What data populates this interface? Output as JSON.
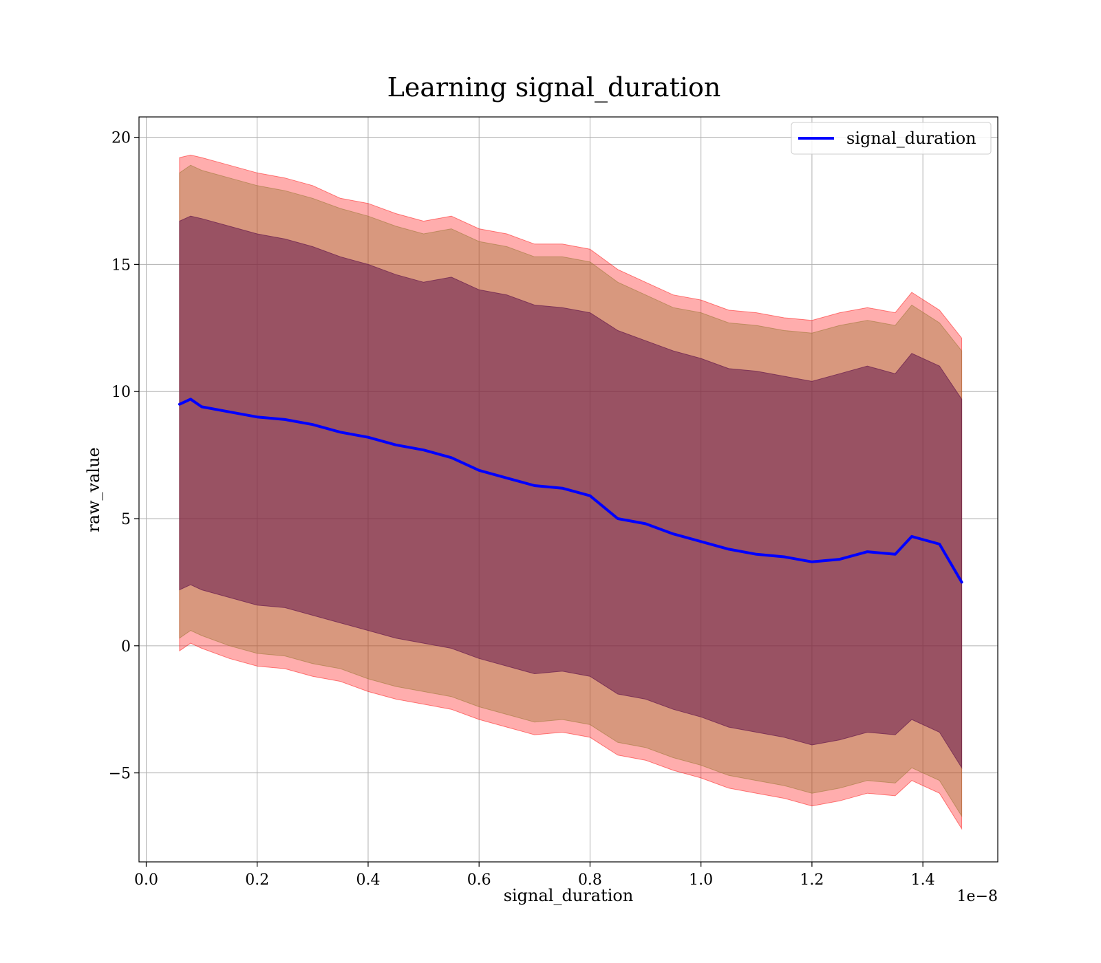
{
  "chart_data": {
    "type": "line",
    "title": "Learning signal_duration",
    "xlabel": "signal_duration",
    "ylabel": "raw_value",
    "x_offset_text": "1e−8",
    "xlim": [
      -0.013,
      1.535
    ],
    "ylim": [
      -8.5,
      20.8
    ],
    "x_ticks": [
      0.0,
      0.2,
      0.4,
      0.6,
      0.8,
      1.0,
      1.2,
      1.4
    ],
    "x_tick_labels": [
      "0.0",
      "0.2",
      "0.4",
      "0.6",
      "0.8",
      "1.0",
      "1.2",
      "1.4"
    ],
    "y_ticks": [
      -5,
      0,
      5,
      10,
      15,
      20
    ],
    "y_tick_labels": [
      "−5",
      "0",
      "5",
      "10",
      "15",
      "20"
    ],
    "grid": true,
    "legend": {
      "position": "top-right",
      "entries": [
        "signal_duration"
      ]
    },
    "series": [
      {
        "name": "signal_duration",
        "color": "#0000ff",
        "x": [
          0.06,
          0.08,
          0.1,
          0.15,
          0.2,
          0.25,
          0.3,
          0.35,
          0.4,
          0.45,
          0.5,
          0.55,
          0.6,
          0.65,
          0.7,
          0.75,
          0.8,
          0.85,
          0.9,
          0.95,
          1.0,
          1.05,
          1.1,
          1.15,
          1.2,
          1.25,
          1.3,
          1.35,
          1.38,
          1.43,
          1.47
        ],
        "y": [
          9.5,
          9.7,
          9.4,
          9.2,
          9.0,
          8.9,
          8.7,
          8.4,
          8.2,
          7.9,
          7.7,
          7.4,
          6.9,
          6.6,
          6.3,
          6.2,
          5.9,
          5.0,
          4.8,
          4.4,
          4.1,
          3.8,
          3.6,
          3.5,
          3.3,
          3.4,
          3.7,
          3.6,
          4.3,
          4.0,
          2.5
        ]
      }
    ],
    "bands": [
      {
        "color": "#ff0000",
        "opacity": 0.32,
        "x": [
          0.06,
          0.08,
          0.1,
          0.15,
          0.2,
          0.25,
          0.3,
          0.35,
          0.4,
          0.45,
          0.5,
          0.55,
          0.6,
          0.65,
          0.7,
          0.75,
          0.8,
          0.85,
          0.9,
          0.95,
          1.0,
          1.05,
          1.1,
          1.15,
          1.2,
          1.25,
          1.3,
          1.35,
          1.38,
          1.43,
          1.47
        ],
        "upper": [
          19.2,
          19.3,
          19.2,
          18.9,
          18.6,
          18.4,
          18.1,
          17.6,
          17.4,
          17.0,
          16.7,
          16.9,
          16.4,
          16.2,
          15.8,
          15.8,
          15.6,
          14.8,
          14.3,
          13.8,
          13.6,
          13.2,
          13.1,
          12.9,
          12.8,
          13.1,
          13.3,
          13.1,
          13.9,
          13.2,
          12.1
        ],
        "lower": [
          -0.2,
          0.1,
          -0.1,
          -0.5,
          -0.8,
          -0.9,
          -1.2,
          -1.4,
          -1.8,
          -2.1,
          -2.3,
          -2.5,
          -2.9,
          -3.2,
          -3.5,
          -3.4,
          -3.6,
          -4.3,
          -4.5,
          -4.9,
          -5.2,
          -5.6,
          -5.8,
          -6.0,
          -6.3,
          -6.1,
          -5.8,
          -5.9,
          -5.3,
          -5.8,
          -7.2
        ]
      },
      {
        "color": "#997733",
        "opacity": 0.38,
        "x": [
          0.06,
          0.08,
          0.1,
          0.15,
          0.2,
          0.25,
          0.3,
          0.35,
          0.4,
          0.45,
          0.5,
          0.55,
          0.6,
          0.65,
          0.7,
          0.75,
          0.8,
          0.85,
          0.9,
          0.95,
          1.0,
          1.05,
          1.1,
          1.15,
          1.2,
          1.25,
          1.3,
          1.35,
          1.38,
          1.43,
          1.47
        ],
        "upper": [
          18.6,
          18.9,
          18.7,
          18.4,
          18.1,
          17.9,
          17.6,
          17.2,
          16.9,
          16.5,
          16.2,
          16.4,
          15.9,
          15.7,
          15.3,
          15.3,
          15.1,
          14.3,
          13.8,
          13.3,
          13.1,
          12.7,
          12.6,
          12.4,
          12.3,
          12.6,
          12.8,
          12.6,
          13.4,
          12.7,
          11.6
        ],
        "lower": [
          0.3,
          0.6,
          0.4,
          0.0,
          -0.3,
          -0.4,
          -0.7,
          -0.9,
          -1.3,
          -1.6,
          -1.8,
          -2.0,
          -2.4,
          -2.7,
          -3.0,
          -2.9,
          -3.1,
          -3.8,
          -4.0,
          -4.4,
          -4.7,
          -5.1,
          -5.3,
          -5.5,
          -5.8,
          -5.6,
          -5.3,
          -5.4,
          -4.8,
          -5.3,
          -6.7
        ]
      },
      {
        "color": "#6b1f4f",
        "opacity": 0.58,
        "x": [
          0.06,
          0.08,
          0.1,
          0.15,
          0.2,
          0.25,
          0.3,
          0.35,
          0.4,
          0.45,
          0.5,
          0.55,
          0.6,
          0.65,
          0.7,
          0.75,
          0.8,
          0.85,
          0.9,
          0.95,
          1.0,
          1.05,
          1.1,
          1.15,
          1.2,
          1.25,
          1.3,
          1.35,
          1.38,
          1.43,
          1.47
        ],
        "upper": [
          16.7,
          16.9,
          16.8,
          16.5,
          16.2,
          16.0,
          15.7,
          15.3,
          15.0,
          14.6,
          14.3,
          14.5,
          14.0,
          13.8,
          13.4,
          13.3,
          13.1,
          12.4,
          12.0,
          11.6,
          11.3,
          10.9,
          10.8,
          10.6,
          10.4,
          10.7,
          11.0,
          10.7,
          11.5,
          11.0,
          9.7
        ],
        "lower": [
          2.2,
          2.4,
          2.2,
          1.9,
          1.6,
          1.5,
          1.2,
          0.9,
          0.6,
          0.3,
          0.1,
          -0.1,
          -0.5,
          -0.8,
          -1.1,
          -1.0,
          -1.2,
          -1.9,
          -2.1,
          -2.5,
          -2.8,
          -3.2,
          -3.4,
          -3.6,
          -3.9,
          -3.7,
          -3.4,
          -3.5,
          -2.9,
          -3.4,
          -4.8
        ]
      }
    ]
  }
}
